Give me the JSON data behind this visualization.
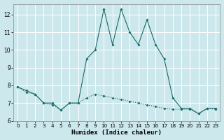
{
  "xlabel": "Humidex (Indice chaleur)",
  "bg_color": "#cde8ec",
  "grid_color": "#ffffff",
  "line_color": "#1a6b6b",
  "xlim": [
    -0.5,
    23.5
  ],
  "ylim": [
    6,
    12.6
  ],
  "yticks": [
    6,
    7,
    8,
    9,
    10,
    11,
    12
  ],
  "xticks": [
    0,
    1,
    2,
    3,
    4,
    5,
    6,
    7,
    8,
    9,
    10,
    11,
    12,
    13,
    14,
    15,
    16,
    17,
    18,
    19,
    20,
    21,
    22,
    23
  ],
  "series1_x": [
    0,
    1,
    2,
    3,
    4,
    5,
    6,
    7,
    8,
    9,
    10,
    11,
    12,
    13,
    14,
    15,
    16,
    17,
    18,
    19,
    20,
    21,
    22,
    23
  ],
  "series1_y": [
    7.9,
    7.7,
    7.5,
    7.0,
    7.0,
    6.6,
    7.0,
    7.0,
    9.5,
    10.0,
    12.3,
    10.3,
    12.3,
    11.0,
    10.3,
    11.7,
    10.3,
    9.5,
    7.3,
    6.7,
    6.7,
    6.4,
    6.7,
    6.7
  ],
  "series2_x": [
    0,
    1,
    2,
    3,
    4,
    5,
    6,
    7,
    8,
    9,
    10,
    11,
    12,
    13,
    14,
    15,
    16,
    17,
    18,
    19,
    20,
    21,
    22,
    23
  ],
  "series2_y": [
    7.9,
    7.6,
    7.5,
    7.0,
    6.9,
    6.6,
    7.0,
    7.0,
    7.3,
    7.5,
    7.4,
    7.3,
    7.2,
    7.1,
    7.0,
    6.9,
    6.8,
    6.7,
    6.65,
    6.65,
    6.65,
    6.4,
    6.7,
    6.65
  ]
}
